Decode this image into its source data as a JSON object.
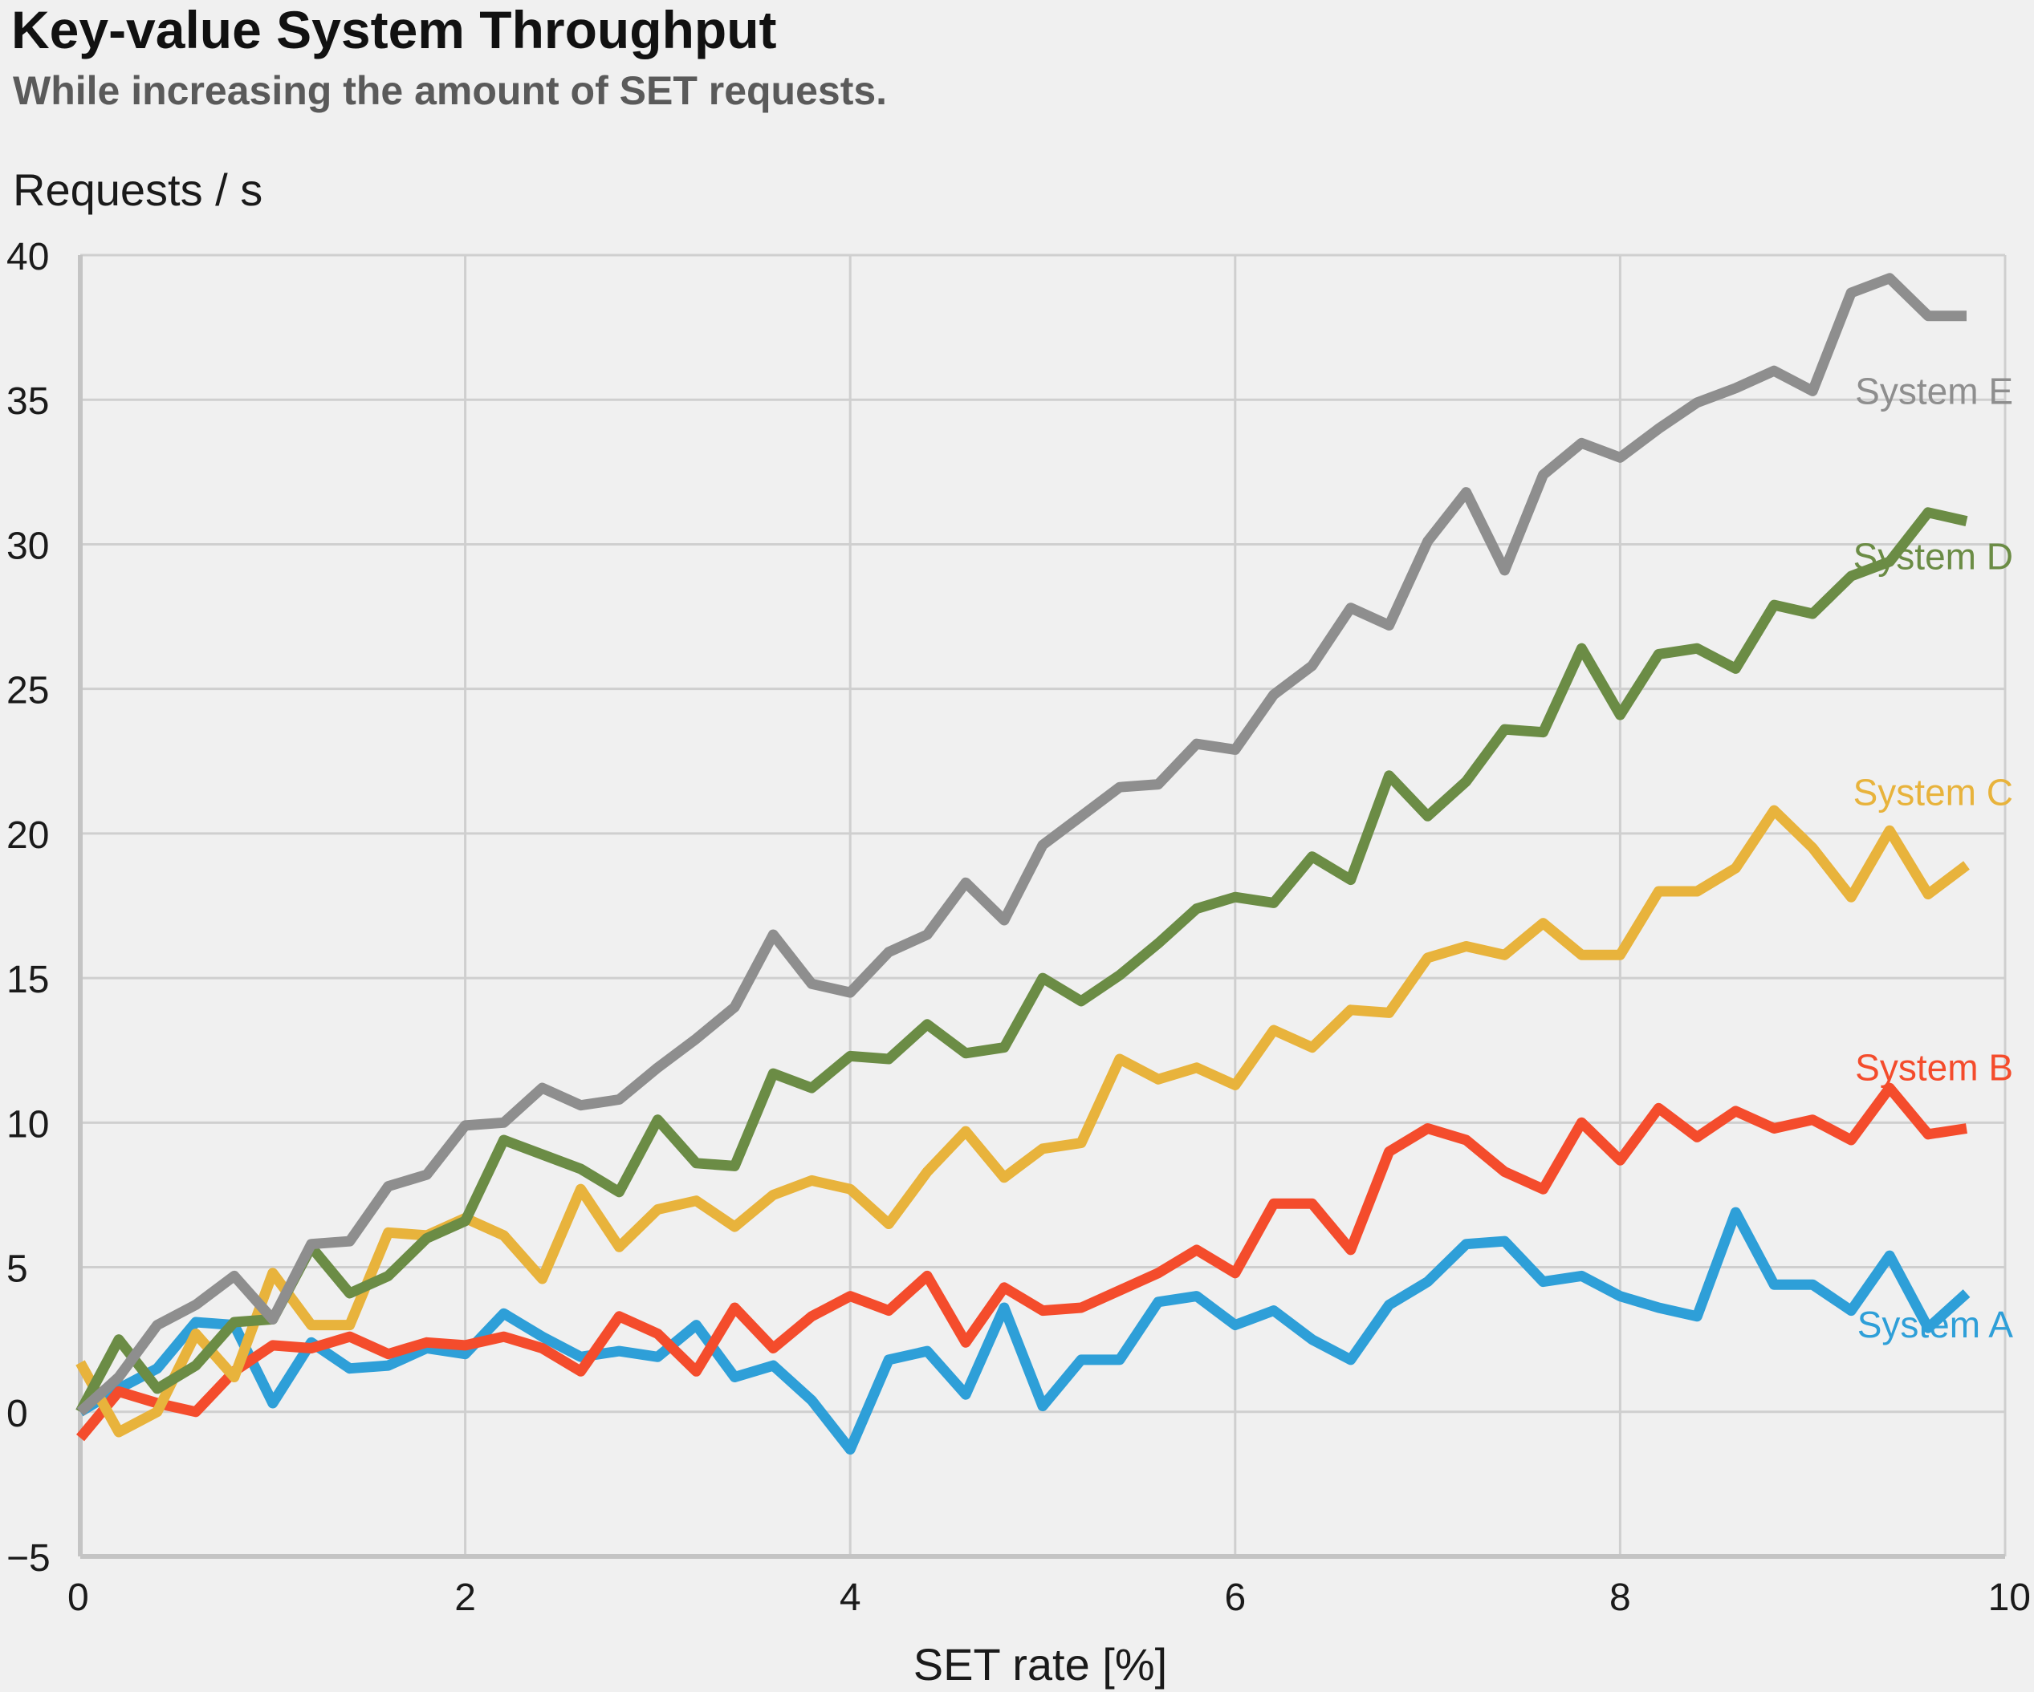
{
  "chart_data": {
    "type": "line",
    "title": "Key-value System Throughput",
    "subtitle": "While increasing the amount of SET requests.",
    "xlabel": "SET rate [%]",
    "ylabel": "Requests / s",
    "xlim": [
      0,
      10
    ],
    "ylim": [
      -5,
      40
    ],
    "xticks": [
      0,
      2,
      4,
      6,
      8,
      10
    ],
    "yticks": [
      -5,
      0,
      5,
      10,
      15,
      20,
      25,
      30,
      35,
      40
    ],
    "xtick_labels": [
      "0",
      "2",
      "4",
      "6",
      "8",
      "10"
    ],
    "ytick_labels": [
      "−5",
      "0",
      "5",
      "10",
      "15",
      "20",
      "25",
      "30",
      "35",
      "40"
    ],
    "grid": true,
    "legend": "direct labels at right end of each line",
    "x": [
      0,
      0.2,
      0.4,
      0.6,
      0.8,
      1.0,
      1.2,
      1.4,
      1.6,
      1.8,
      2.0,
      2.2,
      2.4,
      2.6,
      2.8,
      3.0,
      3.2,
      3.4,
      3.6,
      3.8,
      4.0,
      4.2,
      4.4,
      4.6,
      4.8,
      5.0,
      5.2,
      5.4,
      5.6,
      5.8,
      6.0,
      6.2,
      6.4,
      6.6,
      6.8,
      7.0,
      7.2,
      7.4,
      7.6,
      7.8,
      8.0,
      8.2,
      8.4,
      8.6,
      8.8,
      9.0,
      9.2,
      9.4,
      9.6,
      9.8,
      10.0
    ],
    "series": [
      {
        "name": "System A",
        "color": "#2e9fd8",
        "values": [
          0.0,
          0.8,
          1.5,
          3.1,
          3.0,
          0.3,
          2.4,
          1.5,
          1.6,
          2.2,
          2.0,
          3.4,
          2.6,
          1.9,
          2.1,
          1.9,
          3.0,
          1.2,
          1.6,
          0.4,
          -1.3,
          1.8,
          2.1,
          0.6,
          3.6,
          0.2,
          1.8,
          1.8,
          3.8,
          4.0,
          3.0,
          3.5,
          2.5,
          1.8,
          3.7,
          4.5,
          5.8,
          5.9,
          4.5,
          4.7,
          4.0,
          3.6,
          3.3,
          6.9,
          4.4,
          4.4,
          3.5,
          5.4,
          2.9,
          4.1,
          null
        ]
      },
      {
        "name": "System B",
        "color": "#f44c2c",
        "values": [
          -0.9,
          0.7,
          0.3,
          0.0,
          1.4,
          2.3,
          2.2,
          2.6,
          2.0,
          2.4,
          2.3,
          2.6,
          2.2,
          1.4,
          3.3,
          2.7,
          1.4,
          3.6,
          2.2,
          3.3,
          4.0,
          3.5,
          4.7,
          2.4,
          4.3,
          3.5,
          3.6,
          4.2,
          4.8,
          5.6,
          4.8,
          7.2,
          7.2,
          5.6,
          9.0,
          9.8,
          9.4,
          8.3,
          7.7,
          10.0,
          8.7,
          10.5,
          9.5,
          10.4,
          9.8,
          10.1,
          9.4,
          11.2,
          9.6,
          9.8,
          null
        ]
      },
      {
        "name": "System C",
        "color": "#e8b33c",
        "values": [
          1.7,
          -0.7,
          0.0,
          2.7,
          1.2,
          4.8,
          3.0,
          3.0,
          6.2,
          6.1,
          6.7,
          6.1,
          4.6,
          7.7,
          5.7,
          7.0,
          7.3,
          6.4,
          7.5,
          8.0,
          7.7,
          6.5,
          8.3,
          9.7,
          8.1,
          9.1,
          9.3,
          12.2,
          11.5,
          11.9,
          11.3,
          13.2,
          12.6,
          13.9,
          13.8,
          15.7,
          16.1,
          15.8,
          16.9,
          15.8,
          15.8,
          18.0,
          18.0,
          18.8,
          20.8,
          19.5,
          17.8,
          20.1,
          17.9,
          18.9,
          null
        ]
      },
      {
        "name": "System D",
        "color": "#6b8c45",
        "values": [
          0.0,
          2.5,
          0.8,
          1.6,
          3.1,
          3.2,
          5.7,
          4.1,
          4.7,
          6.0,
          6.6,
          9.4,
          8.9,
          8.4,
          7.6,
          10.1,
          8.6,
          8.5,
          11.7,
          11.2,
          12.3,
          12.2,
          13.4,
          12.4,
          12.6,
          15.0,
          14.2,
          15.1,
          16.2,
          17.4,
          17.8,
          17.6,
          19.2,
          18.4,
          22.0,
          20.6,
          21.8,
          23.6,
          23.5,
          26.4,
          24.1,
          26.2,
          26.4,
          25.7,
          27.9,
          27.6,
          28.9,
          29.4,
          31.1,
          30.8,
          null
        ]
      },
      {
        "name": "System E",
        "color": "#8e8e8e",
        "values": [
          0.0,
          1.2,
          3.0,
          3.7,
          4.7,
          3.2,
          5.8,
          5.9,
          7.8,
          8.2,
          9.9,
          10.0,
          11.2,
          10.6,
          10.8,
          11.9,
          12.9,
          14.0,
          16.5,
          14.8,
          14.5,
          15.9,
          16.5,
          18.3,
          17.0,
          19.6,
          20.6,
          21.6,
          21.7,
          23.1,
          22.9,
          24.8,
          25.8,
          27.8,
          27.2,
          30.1,
          31.8,
          29.1,
          32.4,
          33.5,
          33.0,
          34.0,
          34.9,
          35.4,
          36.0,
          35.3,
          38.7,
          39.2,
          37.9,
          37.9,
          null
        ]
      }
    ]
  }
}
